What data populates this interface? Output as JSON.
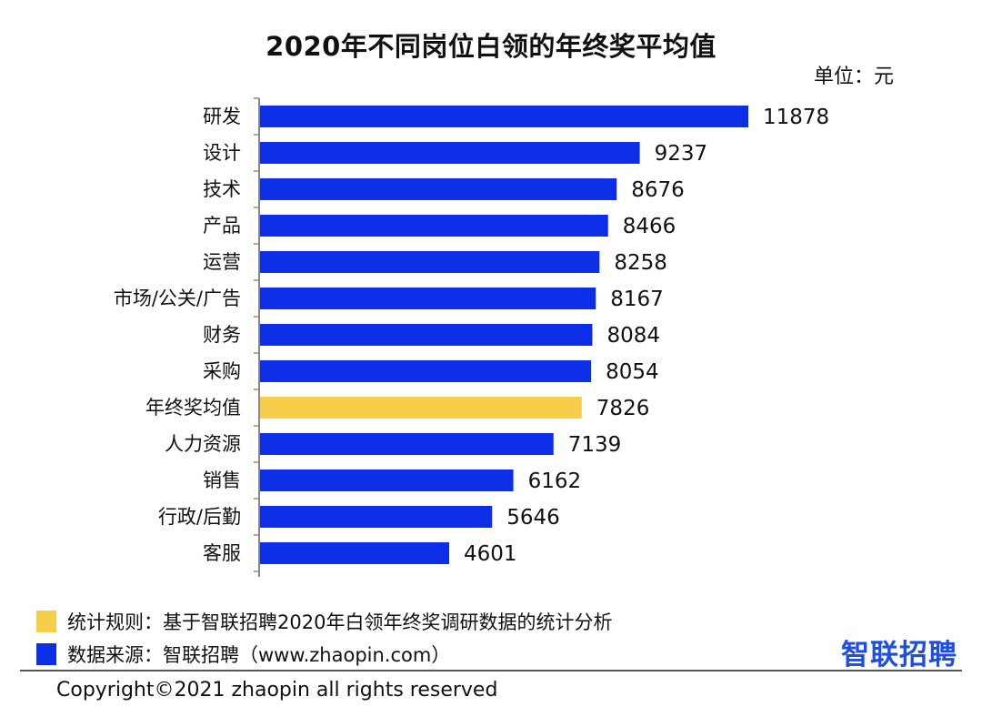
{
  "colors": {
    "bar": "#0B2EE6",
    "highlight": "#F7CE4A",
    "axis": "#888888"
  },
  "chart_data": {
    "type": "bar",
    "orientation": "horizontal",
    "title": "2020年不同岗位白领的年终奖平均值",
    "unit": "单位：元",
    "xlim": [
      0,
      14000
    ],
    "categories": [
      "研发",
      "设计",
      "技术",
      "产品",
      "运营",
      "市场/公关/广告",
      "财务",
      "采购",
      "年终奖均值",
      "人力资源",
      "销售",
      "行政/后勤",
      "客服"
    ],
    "values": [
      11878,
      9237,
      8676,
      8466,
      8258,
      8167,
      8084,
      8054,
      7826,
      7139,
      6162,
      5646,
      4601
    ],
    "highlight_category": "年终奖均值"
  },
  "legend": [
    {
      "color": "#F7CE4A",
      "text": "统计规则：基于智联招聘2020年白领年终奖调研数据的统计分析"
    },
    {
      "color": "#0B2EE6",
      "text": "数据来源：智联招聘（www.zhaopin.com）"
    }
  ],
  "logo": "智联招聘",
  "copyright": "Copyright©2021 zhaopin all rights reserved"
}
